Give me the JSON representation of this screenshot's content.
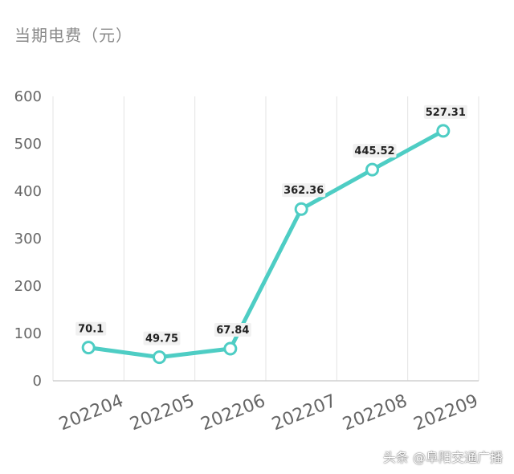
{
  "chart_data": {
    "type": "line",
    "title": "当期电费（元）",
    "categories": [
      "202204",
      "202205",
      "202206",
      "202207",
      "202208",
      "202209"
    ],
    "series": [
      {
        "values": [
          70.1,
          49.75,
          67.84,
          362.36,
          445.52,
          527.31
        ]
      }
    ],
    "data_labels": [
      "70.1",
      "49.75",
      "67.84",
      "362.36",
      "445.52",
      "527.31"
    ],
    "ylim": [
      0,
      600
    ],
    "yticks": [
      0,
      100,
      200,
      300,
      400,
      500,
      600
    ],
    "grid": "vertical",
    "line_color": "#4ecdc4",
    "marker_fill": "#ffffff"
  },
  "watermark": "头条 @阜阳交通广播"
}
